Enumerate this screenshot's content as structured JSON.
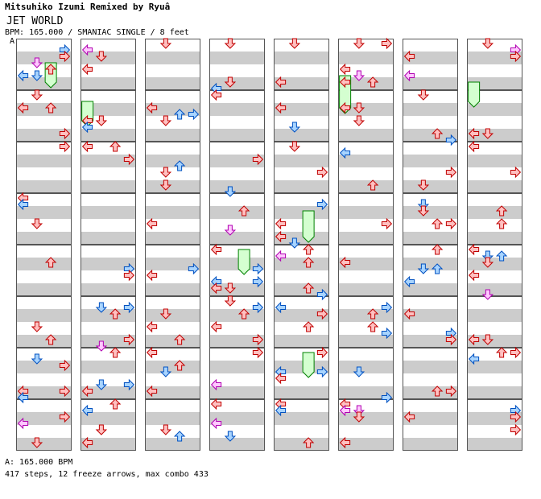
{
  "header": {
    "artist_line": "Mitsuhiko Izumi Remixed by Ryuâ",
    "title": "JET WORLD",
    "info": "BPM: 165.000 / SMANIAC SINGLE / 8 feet"
  },
  "marker_label": "A",
  "footer": {
    "bpm_line": "A: 165.000 BPM",
    "stats_line": "417 steps, 12 freeze arrows, max combo 433"
  },
  "colors": {
    "red_fill": "#ffc0c0",
    "red_stroke": "#c00000",
    "blue_fill": "#a8d4ff",
    "blue_stroke": "#0050c0",
    "pink_fill": "#ffc8ff",
    "pink_stroke": "#b000b0",
    "freeze_fill": "#d4ffd0",
    "freeze_stroke": "#008000",
    "stripe_gray": "#cccccc",
    "border": "#000000"
  },
  "chart_data": {
    "type": "step-chart",
    "columns": 8,
    "measures_per_column": 8,
    "lanes": [
      "left",
      "down",
      "up",
      "right"
    ],
    "stats": {
      "steps": 417,
      "freeze_arrows": 12,
      "max_combo": 433,
      "bpm": 165
    }
  }
}
